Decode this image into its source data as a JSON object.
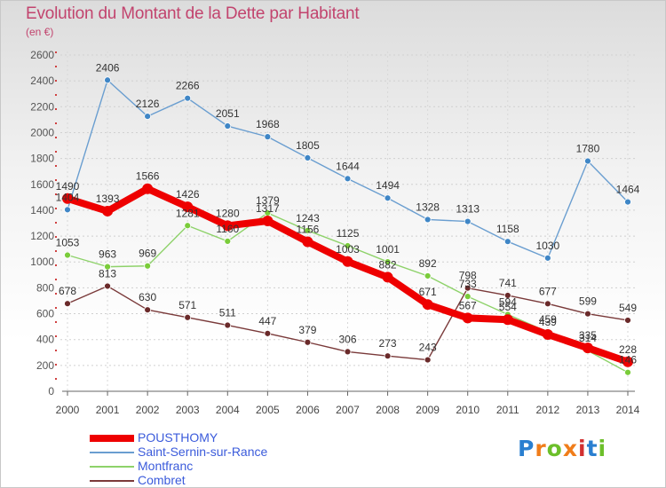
{
  "header": {
    "title": "Evolution du Montant de la Dette par Habitant",
    "subtitle": "(en €)"
  },
  "logo": {
    "text": "Proxiti",
    "colors": [
      "#2a7fd0",
      "#f07d1a",
      "#6cbf2a",
      "#f07d1a",
      "#d23030",
      "#2a7fd0",
      "#6cbf2a"
    ]
  },
  "chart_data": {
    "type": "line",
    "title": "Evolution du Montant de la Dette par Habitant",
    "subtitle": "(en €)",
    "xlabel": "",
    "ylabel": "",
    "ylim": [
      0,
      2600
    ],
    "yticks": [
      "0",
      "200",
      "400",
      "600",
      "800",
      "1000",
      "1200",
      "1400",
      "1600",
      "1800",
      "2000",
      "2200",
      "2400",
      "2600"
    ],
    "grid": true,
    "legend_position": "bottom-left",
    "categories": [
      "2000",
      "2001",
      "2002",
      "2003",
      "2004",
      "2005",
      "2006",
      "2007",
      "2008",
      "2009",
      "2010",
      "2011",
      "2012",
      "2013",
      "2014"
    ],
    "series": [
      {
        "name": "Saint-Sernin-sur-Rance",
        "color": "#6a9ed0",
        "marker_color": "#3f86c6",
        "values": [
          1404,
          2406,
          2126,
          2266,
          2051,
          1968,
          1805,
          1644,
          1494,
          1328,
          1313,
          1158,
          1030,
          1780,
          1464
        ],
        "labels": [
          "1404",
          "2406",
          "2126",
          "2266",
          "2051",
          "1968",
          "1805",
          "1644",
          "1494",
          "1328",
          "1313",
          "1158",
          "1030",
          "1780",
          "1464"
        ]
      },
      {
        "name": "Montfranc",
        "color": "#8ed26a",
        "marker_color": "#7acc3a",
        "values": [
          1053,
          963,
          969,
          1281,
          1160,
          1379,
          1243,
          1125,
          1001,
          892,
          733,
          594,
          459,
          314,
          146
        ],
        "labels": [
          "1053",
          "963",
          "969",
          "1281",
          "1160",
          "1379",
          "1243",
          "1125",
          "1001",
          "892",
          "733",
          "594",
          "459",
          "314",
          "146"
        ]
      },
      {
        "name": "Combret",
        "color": "#7a3a3a",
        "marker_color": "#6a2a2a",
        "values": [
          678,
          813,
          630,
          571,
          511,
          447,
          379,
          306,
          273,
          243,
          798,
          741,
          677,
          599,
          549
        ],
        "labels": [
          "678",
          "813",
          "630",
          "571",
          "511",
          "447",
          "379",
          "306",
          "273",
          "243",
          "798",
          "741",
          "677",
          "599",
          "549"
        ]
      },
      {
        "name": "POUSTHOMY",
        "color": "#ee0000",
        "marker_color": "#ee0000",
        "values": [
          1490,
          1393,
          1566,
          1426,
          1280,
          1317,
          1156,
          1003,
          882,
          671,
          567,
          554,
          439,
          335,
          228
        ],
        "labels": [
          "1490",
          "1393",
          "1566",
          "1426",
          "1280",
          "1317",
          "1156",
          "1003",
          "882",
          "671",
          "567",
          "554",
          "439",
          "335",
          "228"
        ]
      }
    ],
    "legend": [
      {
        "name": "POUSTHOMY",
        "color": "#ee0000",
        "text_color": "#3b5bdb"
      },
      {
        "name": "Saint-Sernin-sur-Rance",
        "color": "#6a9ed0",
        "text_color": "#3b5bdb"
      },
      {
        "name": "Montfranc",
        "color": "#8ed26a",
        "text_color": "#3b5bdb"
      },
      {
        "name": "Combret",
        "color": "#7a3a3a",
        "text_color": "#3b5bdb"
      }
    ]
  }
}
